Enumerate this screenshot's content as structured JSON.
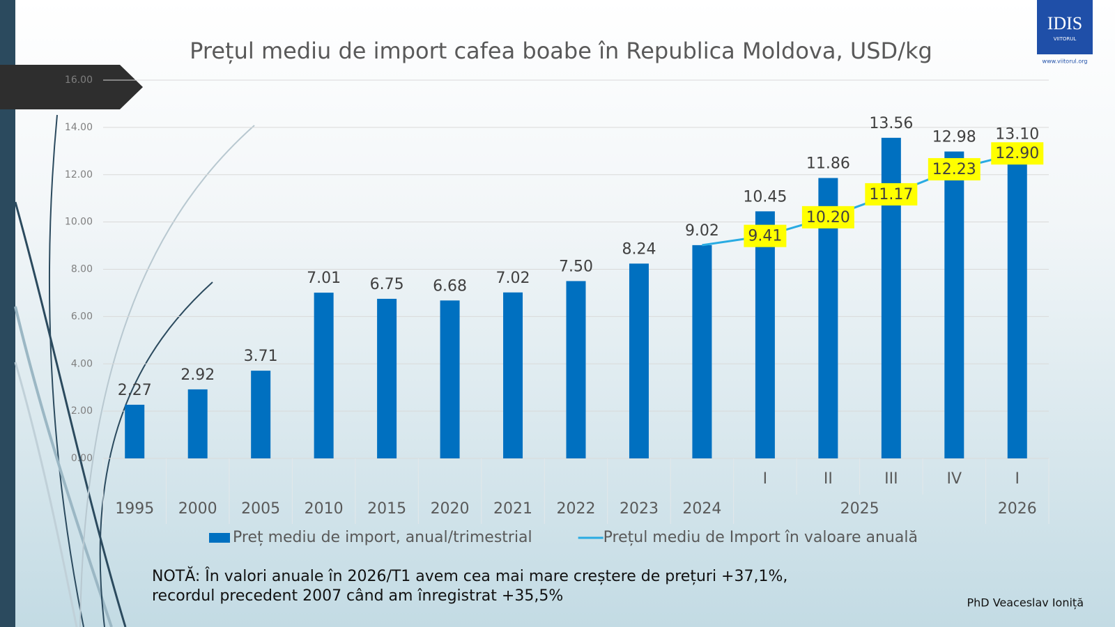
{
  "chart_data": {
    "type": "bar-line",
    "title": "Prețul mediu de import cafea boabe în Republica Moldova, USD/kg",
    "categories": [
      null,
      null,
      null,
      null,
      null,
      null,
      null,
      null,
      null,
      null,
      "I",
      "II",
      "III",
      "IV",
      "I"
    ],
    "groups": [
      "1995",
      "2000",
      "2005",
      "2010",
      "2015",
      "2020",
      "2021",
      "2022",
      "2023",
      "2024",
      "2025",
      null,
      null,
      null,
      "2026"
    ],
    "series": [
      {
        "name": "Preț mediu de import, anual/trimestrial",
        "type": "bar",
        "color": "#0070c0",
        "values": [
          2.27,
          2.92,
          3.71,
          7.01,
          6.75,
          6.68,
          7.02,
          7.5,
          8.24,
          9.02,
          10.45,
          11.86,
          13.56,
          12.98,
          13.1
        ],
        "value_labels": [
          "2.27",
          "2.92",
          "3.71",
          "7.01",
          "6.75",
          "6.68",
          "7.02",
          "7.50",
          "8.24",
          "9.02",
          "10.45",
          "11.86",
          "13.56",
          "12.98",
          "13.10"
        ]
      },
      {
        "name": "Prețul mediu de Import în valoare anuală",
        "type": "line",
        "color": "#29abe2",
        "values": [
          null,
          null,
          null,
          null,
          null,
          null,
          null,
          null,
          null,
          9.02,
          9.41,
          10.2,
          11.17,
          12.23,
          12.9
        ],
        "value_labels": [
          null,
          null,
          null,
          null,
          null,
          null,
          null,
          null,
          null,
          null,
          "9.41",
          "10.20",
          "11.17",
          "12.23",
          "12.90"
        ]
      }
    ],
    "ylim": [
      0,
      16
    ],
    "yticks": [
      {
        "value": 0,
        "label": "0.00"
      },
      {
        "value": 2,
        "label": "2.00"
      },
      {
        "value": 4,
        "label": "4.00"
      },
      {
        "value": 6,
        "label": "6.00"
      },
      {
        "value": 8,
        "label": "8.00"
      },
      {
        "value": 10,
        "label": "10.00"
      },
      {
        "value": 12,
        "label": "12.00"
      },
      {
        "value": 14,
        "label": "14.00"
      },
      {
        "value": 16,
        "label": "16.00"
      }
    ],
    "grid": true,
    "annotations": [
      "NOTĂ: În valori anuale în 2026/T1 avem cea mai mare creștere de prețuri +37,1%,",
      "recordul precedent 2007 când am înregistrat +35,5%"
    ],
    "source": "PhD Veaceslav Ioniță"
  },
  "logo": {
    "text": "IDIS",
    "subtext": "VIITORUL",
    "url": "www.viitorul.org"
  }
}
